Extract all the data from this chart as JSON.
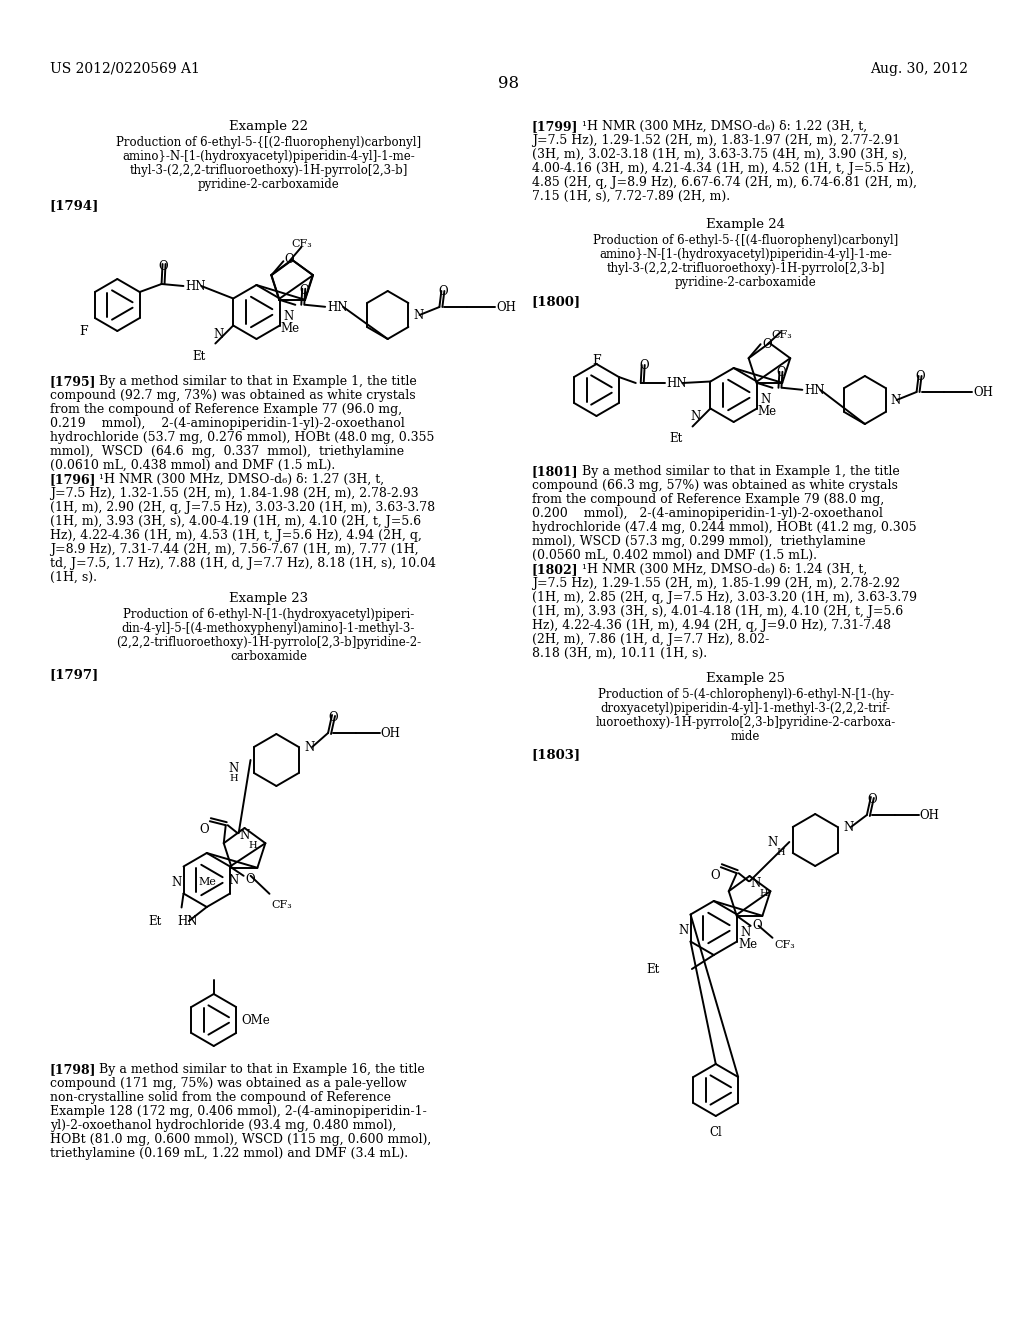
{
  "bg": "#ffffff",
  "header_left": "US 2012/0220569 A1",
  "header_right": "Aug. 30, 2012",
  "page_num": "98"
}
